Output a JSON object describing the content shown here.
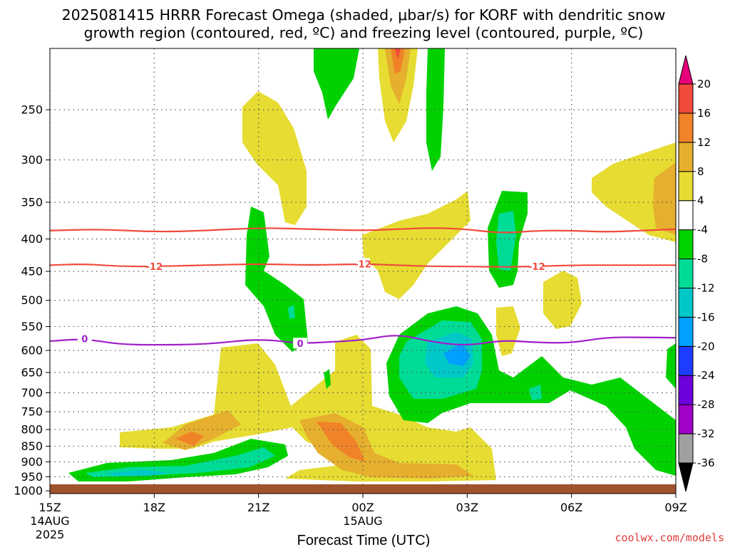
{
  "title_line1": "2025081415 HRRR Forecast Omega (shaded, μbar/s) for KORF with dendritic snow",
  "title_line2": "growth region (contoured, red, ºC) and freezing level (contoured, purple, ºC)",
  "credit": "coolwx.com/models",
  "colors": {
    "snow_growth_contour": "#f04a3c",
    "freezing_level_contour": "#a01ec8",
    "ground": "#a0522d",
    "frame": "#000000"
  },
  "chart_data": {
    "type": "heatmap",
    "title": "2025081415 HRRR Forecast Omega (shaded, μbar/s) for KORF with dendritic snow growth region (contoured, red, ºC) and freezing level (contoured, purple, ºC)",
    "xlabel": "Forecast Time (UTC)",
    "ylabel": "",
    "y_scale": "log (pressure, hPa)",
    "grid": true,
    "x_range": [
      "2025-08-14 15Z",
      "2025-08-15 09Z"
    ],
    "x_ticks": [
      {
        "label": "15Z",
        "sub1": "14AUG",
        "sub2": "2025",
        "hours": 0
      },
      {
        "label": "18Z",
        "sub1": "",
        "sub2": "",
        "hours": 3
      },
      {
        "label": "21Z",
        "sub1": "",
        "sub2": "",
        "hours": 6
      },
      {
        "label": "00Z",
        "sub1": "15AUG",
        "sub2": "",
        "hours": 9
      },
      {
        "label": "03Z",
        "sub1": "",
        "sub2": "",
        "hours": 12
      },
      {
        "label": "06Z",
        "sub1": "",
        "sub2": "",
        "hours": 15
      },
      {
        "label": "09Z",
        "sub1": "",
        "sub2": "",
        "hours": 18
      }
    ],
    "y_ticks": [
      250,
      300,
      350,
      400,
      450,
      500,
      550,
      600,
      650,
      700,
      750,
      800,
      850,
      900,
      950,
      1000
    ],
    "y_range": [
      1010,
      200
    ],
    "colorbar": {
      "units": "μbar/s",
      "levels": [
        -36,
        -32,
        -28,
        -24,
        -20,
        -16,
        -12,
        -8,
        -4,
        4,
        8,
        12,
        16,
        20
      ],
      "colors": [
        "#000000",
        "#a0a0a0",
        "#a000c8",
        "#6e00dc",
        "#1e3cff",
        "#00a0ff",
        "#00c8c8",
        "#00dc96",
        "#00d200",
        "#ffffff",
        "#e6dc32",
        "#e6af2d",
        "#f08228",
        "#f04a3c",
        "#e6007a"
      ]
    },
    "contours": [
      {
        "name": "-12",
        "kind": "dendritic snow growth region",
        "color": "#f04a3c",
        "points": [
          [
            0,
            388
          ],
          [
            1.5,
            386
          ],
          [
            3,
            390
          ],
          [
            4.5,
            388
          ],
          [
            6,
            384
          ],
          [
            7.5,
            386
          ],
          [
            9,
            388
          ],
          [
            10,
            386
          ],
          [
            11,
            384
          ],
          [
            12,
            386
          ],
          [
            13,
            392
          ],
          [
            14,
            388
          ],
          [
            15,
            388
          ],
          [
            16,
            390
          ],
          [
            17,
            388
          ],
          [
            18,
            386
          ]
        ]
      },
      {
        "name": "-12",
        "kind": "dendritic snow growth region",
        "color": "#f04a3c",
        "points": [
          [
            0,
            440
          ],
          [
            1,
            438
          ],
          [
            2,
            442
          ],
          [
            3,
            442
          ],
          [
            4.5,
            440
          ],
          [
            6,
            438
          ],
          [
            7.5,
            440
          ],
          [
            9,
            438
          ],
          [
            10,
            440
          ],
          [
            11,
            442
          ],
          [
            12,
            442
          ],
          [
            13,
            443
          ],
          [
            14,
            442
          ],
          [
            15,
            440
          ],
          [
            16,
            440
          ],
          [
            17,
            440
          ],
          [
            18,
            440
          ]
        ]
      },
      {
        "name": "0",
        "kind": "freezing level",
        "color": "#a01ec8",
        "points": [
          [
            0,
            580
          ],
          [
            1,
            575
          ],
          [
            2,
            587
          ],
          [
            3,
            588
          ],
          [
            4.5,
            587
          ],
          [
            6,
            575
          ],
          [
            7.2,
            585
          ],
          [
            8,
            582
          ],
          [
            9,
            578
          ],
          [
            10,
            565
          ],
          [
            11,
            582
          ],
          [
            12,
            590
          ],
          [
            13,
            578
          ],
          [
            14,
            583
          ],
          [
            15,
            584
          ],
          [
            16,
            572
          ],
          [
            17,
            572
          ],
          [
            18,
            573
          ]
        ]
      }
    ],
    "regions": [
      {
        "label": "upward motion 4-8 (low levels)",
        "fill": "#e6dc32",
        "approx_hours": [
          2.5,
          10
        ],
        "approx_hPa": [
          600,
          1000
        ]
      },
      {
        "label": "upward motion 8-12 near 850 hPa",
        "fill": "#e6af2d",
        "approx_hours": [
          3.5,
          13
        ],
        "approx_hPa": [
          800,
          950
        ]
      },
      {
        "label": "upward motion 12-16 near 850 hPa",
        "fill": "#f08228",
        "approx_hours": [
          4,
          8
        ],
        "approx_hPa": [
          830,
          900
        ]
      },
      {
        "label": "downward motion -4 to -16 low levels",
        "fill": "#00d200",
        "approx_hours": [
          0.7,
          7
        ],
        "approx_hPa": [
          900,
          1000
        ]
      },
      {
        "label": "downward motion -4 to -20 mid levels",
        "fill": "#00d200",
        "approx_hours": [
          10,
          18
        ],
        "approx_hPa": [
          550,
          950
        ]
      },
      {
        "label": "upper jet max 8-20 near 200-300 hPa",
        "fill": "#f04a3c",
        "approx_hours": [
          10.5,
          11.5
        ],
        "approx_hPa": [
          200,
          300
        ]
      }
    ]
  }
}
